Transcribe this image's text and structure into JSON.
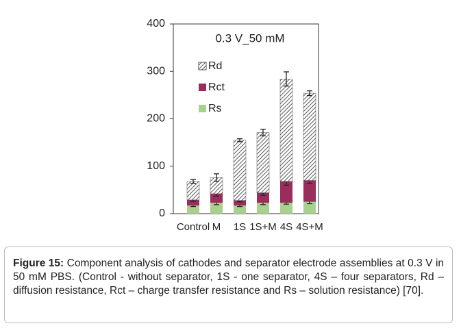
{
  "chart_data": {
    "type": "stacked-bar",
    "annotation": "0.3 V_50 mM",
    "categories": [
      "Control",
      "M",
      "1S",
      "1S+M",
      "4S",
      "4S+M"
    ],
    "series": [
      {
        "name": "Rs",
        "color": "#a9d18e",
        "values": [
          17,
          23,
          17,
          23,
          23,
          25
        ],
        "errors": [
          2,
          4,
          2,
          4,
          3,
          4
        ]
      },
      {
        "name": "Rct",
        "color": "#9b2d5c",
        "values": [
          12,
          19,
          11,
          21,
          45,
          45
        ],
        "errors": [
          3,
          5,
          3,
          5,
          8,
          6
        ]
      },
      {
        "name": "Rd",
        "color": "#555555",
        "pattern": "hatch",
        "values": [
          39,
          34,
          127,
          127,
          216,
          184
        ],
        "errors": [
          4,
          8,
          3,
          7,
          15,
          5
        ]
      }
    ],
    "ylim": [
      0,
      400
    ],
    "yticks": [
      0,
      100,
      200,
      300,
      400
    ],
    "legend": "upper left"
  },
  "caption": {
    "label": "Figure 15:",
    "text": "Component analysis of cathodes and separator electrode assemblies at 0.3 V in 50 mM PBS. (Control - without separator, 1S - one separator, 4S – four separators, Rd – diffusion resistance, Rct – charge transfer resistance and Rs – solution resistance) [70]."
  }
}
